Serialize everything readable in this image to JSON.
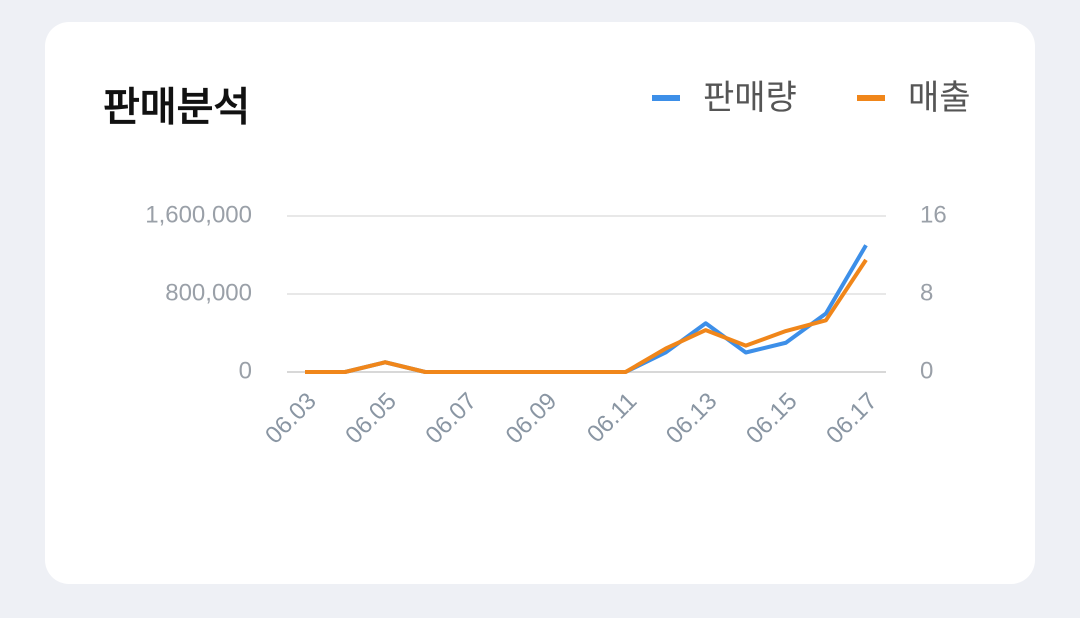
{
  "chart_data": {
    "type": "line",
    "title": "판매분석",
    "categories": [
      "06.03",
      null,
      "06.05",
      null,
      "06.07",
      null,
      "06.09",
      null,
      "06.11",
      null,
      "06.13",
      null,
      "06.15",
      null,
      "06.17"
    ],
    "series": [
      {
        "name": "판매량",
        "color": "#3d8fe8",
        "axis": "y2",
        "values": [
          0,
          0,
          1,
          0,
          0,
          0,
          0,
          0,
          0,
          2,
          5,
          2,
          3,
          6,
          13
        ]
      },
      {
        "name": "매출",
        "color": "#f0861a",
        "values": [
          0,
          0,
          100000,
          0,
          0,
          0,
          0,
          0,
          0,
          240000,
          430000,
          270000,
          420000,
          530000,
          1150000
        ]
      }
    ],
    "ylim": [
      0,
      1600000
    ],
    "yticks": [
      0,
      {
        "value": 800000,
        "label": "800,000"
      },
      {
        "value": 1600000,
        "label": "1,600,000"
      }
    ],
    "y2lim": [
      0,
      16
    ],
    "y2ticks": [
      0,
      8,
      16
    ],
    "grid": true
  }
}
